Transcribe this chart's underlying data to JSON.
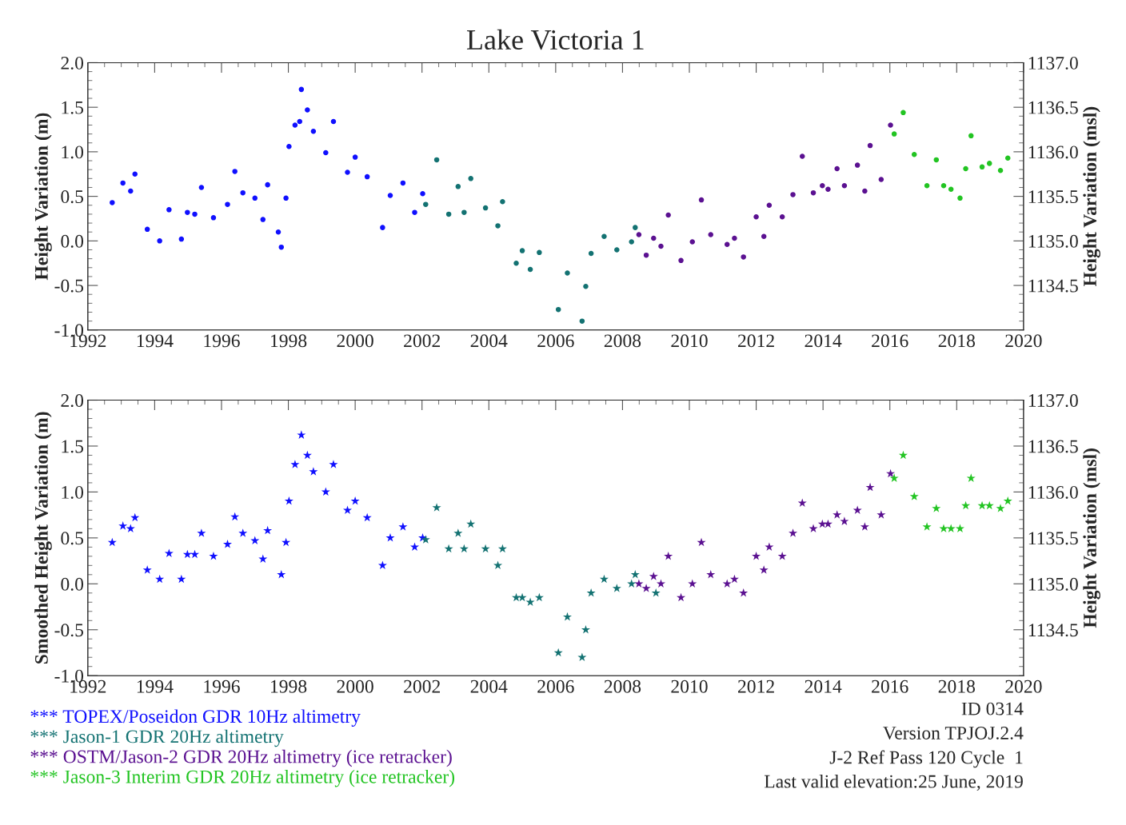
{
  "chart_data": [
    {
      "type": "scatter",
      "title": "Lake Victoria 1",
      "ylabel": "Height Variation (m)",
      "y2label": "Height Variation (msl)",
      "marker": "circle",
      "grid": false,
      "legend": false,
      "xlim": [
        1992,
        2020
      ],
      "xticks": [
        1992,
        1994,
        1996,
        1998,
        2000,
        2002,
        2004,
        2006,
        2008,
        2010,
        2012,
        2014,
        2016,
        2018,
        2020
      ],
      "ylim": [
        -1.0,
        2.0
      ],
      "yticks": [
        {
          "value": -1,
          "label": "-1.0"
        },
        -0.5,
        {
          "value": 0,
          "label": "0.0"
        },
        0.5,
        {
          "value": 1,
          "label": "1.0"
        },
        1.5,
        {
          "value": 2,
          "label": "2.0"
        }
      ],
      "y2lim": [
        1134.0,
        1137.0
      ],
      "y2ticks": [
        1134.5,
        {
          "value": 1135,
          "label": "1135.0"
        },
        1135.5,
        {
          "value": 1136,
          "label": "1136.0"
        },
        1136.5,
        {
          "value": 1137,
          "label": "1137.0"
        }
      ],
      "series": [
        {
          "color": "#1010ff",
          "x": [
            1992.73,
            1993.05,
            1993.28,
            1993.41,
            1993.78,
            1994.15,
            1994.43,
            1994.8,
            1994.98,
            1995.2,
            1995.4,
            1995.76,
            1996.18,
            1996.4,
            1996.64,
            1997.0,
            1997.24,
            1997.38,
            1997.7,
            1997.79,
            1997.93,
            1998.02,
            1998.2,
            1998.34,
            1998.39,
            1998.57,
            1998.75,
            1999.12,
            1999.35,
            1999.77,
            2000.0,
            2000.36,
            2000.82,
            2001.05,
            2001.43,
            2001.78,
            2002.02
          ],
          "values": [
            0.43,
            0.65,
            0.56,
            0.75,
            0.13,
            0.0,
            0.35,
            0.02,
            0.32,
            0.3,
            0.6,
            0.26,
            0.41,
            0.78,
            0.54,
            0.48,
            0.24,
            0.63,
            0.1,
            -0.07,
            0.48,
            1.06,
            1.3,
            1.34,
            1.7,
            1.47,
            1.23,
            0.99,
            1.34,
            0.77,
            0.94,
            0.72,
            0.15,
            0.51,
            0.65,
            0.32,
            0.53
          ]
        },
        {
          "color": "#137272",
          "x": [
            2002.11,
            2002.44,
            2002.8,
            2003.08,
            2003.26,
            2003.46,
            2003.9,
            2004.27,
            2004.41,
            2004.82,
            2005.0,
            2005.24,
            2005.51,
            2006.08,
            2006.35,
            2006.79,
            2006.9,
            2007.06,
            2007.45,
            2007.83,
            2008.27,
            2008.38
          ],
          "values": [
            0.41,
            0.91,
            0.3,
            0.61,
            0.32,
            0.7,
            0.37,
            0.17,
            0.44,
            -0.25,
            -0.11,
            -0.32,
            -0.13,
            -0.77,
            -0.36,
            -0.9,
            -0.51,
            -0.14,
            0.05,
            -0.1,
            -0.01,
            0.15
          ]
        },
        {
          "color": "#5b1191",
          "x": [
            2008.49,
            2008.71,
            2008.93,
            2009.15,
            2009.37,
            2009.75,
            2010.09,
            2010.36,
            2010.64,
            2011.13,
            2011.35,
            2011.62,
            2012.0,
            2012.23,
            2012.39,
            2012.78,
            2013.1,
            2013.38,
            2013.71,
            2013.98,
            2014.15,
            2014.42,
            2014.64,
            2015.03,
            2015.25,
            2015.41,
            2015.74,
            2016.02
          ],
          "values": [
            0.07,
            -0.16,
            0.03,
            -0.06,
            0.29,
            -0.22,
            -0.01,
            0.46,
            0.07,
            -0.04,
            0.03,
            -0.18,
            0.27,
            0.05,
            0.4,
            0.27,
            0.52,
            0.95,
            0.54,
            0.62,
            0.58,
            0.81,
            0.62,
            0.85,
            0.56,
            1.07,
            0.69,
            1.3
          ]
        },
        {
          "color": "#22c422",
          "x": [
            2016.13,
            2016.4,
            2016.73,
            2017.11,
            2017.39,
            2017.61,
            2017.83,
            2018.1,
            2018.27,
            2018.43,
            2018.76,
            2018.98,
            2019.31,
            2019.53
          ],
          "values": [
            1.2,
            1.44,
            0.97,
            0.62,
            0.91,
            0.62,
            0.58,
            0.48,
            0.81,
            1.18,
            0.83,
            0.87,
            0.79,
            0.93
          ]
        }
      ]
    },
    {
      "type": "scatter",
      "ylabel": "Smoothed Height Variation (m)",
      "y2label": "Height Variation (msl)",
      "marker": "star",
      "grid": false,
      "legend": "bottom",
      "xlim": [
        1992,
        2020
      ],
      "xticks": [
        1992,
        1994,
        1996,
        1998,
        2000,
        2002,
        2004,
        2006,
        2008,
        2010,
        2012,
        2014,
        2016,
        2018,
        2020
      ],
      "ylim": [
        -1.0,
        2.0
      ],
      "yticks": [
        {
          "value": -1,
          "label": "-1.0"
        },
        -0.5,
        {
          "value": 0,
          "label": "0.0"
        },
        0.5,
        {
          "value": 1,
          "label": "1.0"
        },
        1.5,
        {
          "value": 2,
          "label": "2.0"
        }
      ],
      "y2lim": [
        1134.0,
        1137.0
      ],
      "y2ticks": [
        1134.5,
        {
          "value": 1135,
          "label": "1135.0"
        },
        1135.5,
        {
          "value": 1136,
          "label": "1136.0"
        },
        1136.5,
        {
          "value": 1137,
          "label": "1137.0"
        }
      ],
      "annotations": [
        "ID 0314",
        "Version TPJOJ.2.4",
        "J-2 Ref Pass 120 Cycle  1",
        "Last valid elevation:25 June, 2019"
      ],
      "series": [
        {
          "name": "*** TOPEX/Poseidon GDR 10Hz altimetry",
          "color": "#1010ff",
          "x": [
            1992.73,
            1993.05,
            1993.28,
            1993.41,
            1993.78,
            1994.15,
            1994.43,
            1994.8,
            1994.98,
            1995.2,
            1995.4,
            1995.76,
            1996.18,
            1996.4,
            1996.64,
            1997.0,
            1997.24,
            1997.38,
            1997.79,
            1997.93,
            1998.02,
            1998.2,
            1998.39,
            1998.57,
            1998.75,
            1999.12,
            1999.35,
            1999.77,
            2000.0,
            2000.36,
            2000.82,
            2001.05,
            2001.43,
            2001.78,
            2002.02
          ],
          "values": [
            0.45,
            0.63,
            0.6,
            0.72,
            0.15,
            0.05,
            0.33,
            0.05,
            0.32,
            0.32,
            0.55,
            0.3,
            0.43,
            0.73,
            0.55,
            0.47,
            0.27,
            0.58,
            0.1,
            0.45,
            0.9,
            1.3,
            1.62,
            1.4,
            1.22,
            1.0,
            1.3,
            0.8,
            0.9,
            0.72,
            0.2,
            0.5,
            0.62,
            0.4,
            0.5
          ]
        },
        {
          "name": "*** Jason-1 GDR 20Hz altimetry",
          "color": "#137272",
          "x": [
            2002.11,
            2002.44,
            2002.8,
            2003.08,
            2003.26,
            2003.46,
            2003.9,
            2004.27,
            2004.41,
            2004.82,
            2005.0,
            2005.24,
            2005.51,
            2006.08,
            2006.35,
            2006.79,
            2006.9,
            2007.06,
            2007.45,
            2007.83,
            2008.27,
            2008.38,
            2009.0
          ],
          "values": [
            0.48,
            0.83,
            0.38,
            0.55,
            0.38,
            0.65,
            0.38,
            0.2,
            0.38,
            -0.15,
            -0.15,
            -0.2,
            -0.15,
            -0.75,
            -0.36,
            -0.8,
            -0.5,
            -0.1,
            0.05,
            -0.05,
            0.0,
            0.1,
            -0.1
          ]
        },
        {
          "name": "*** OSTM/Jason-2 GDR 20Hz altimetry (ice retracker)",
          "color": "#5b1191",
          "x": [
            2008.49,
            2008.71,
            2008.93,
            2009.15,
            2009.37,
            2009.75,
            2010.09,
            2010.36,
            2010.64,
            2011.13,
            2011.35,
            2011.62,
            2012.0,
            2012.23,
            2012.39,
            2012.78,
            2013.1,
            2013.38,
            2013.71,
            2013.98,
            2014.15,
            2014.42,
            2014.64,
            2015.03,
            2015.25,
            2015.41,
            2015.74,
            2016.02
          ],
          "values": [
            0.0,
            -0.05,
            0.08,
            0.0,
            0.3,
            -0.15,
            0.0,
            0.45,
            0.1,
            0.0,
            0.05,
            -0.1,
            0.3,
            0.15,
            0.4,
            0.3,
            0.55,
            0.88,
            0.6,
            0.65,
            0.65,
            0.75,
            0.68,
            0.8,
            0.62,
            1.05,
            0.75,
            1.2
          ]
        },
        {
          "name": "*** Jason-3 Interim GDR 20Hz altimetry (ice retracker)",
          "color": "#22c422",
          "x": [
            2016.13,
            2016.4,
            2016.73,
            2017.11,
            2017.39,
            2017.61,
            2017.83,
            2018.1,
            2018.27,
            2018.43,
            2018.76,
            2018.98,
            2019.31,
            2019.53
          ],
          "values": [
            1.15,
            1.4,
            0.95,
            0.62,
            0.82,
            0.6,
            0.6,
            0.6,
            0.85,
            1.15,
            0.85,
            0.85,
            0.82,
            0.9
          ]
        }
      ]
    }
  ]
}
